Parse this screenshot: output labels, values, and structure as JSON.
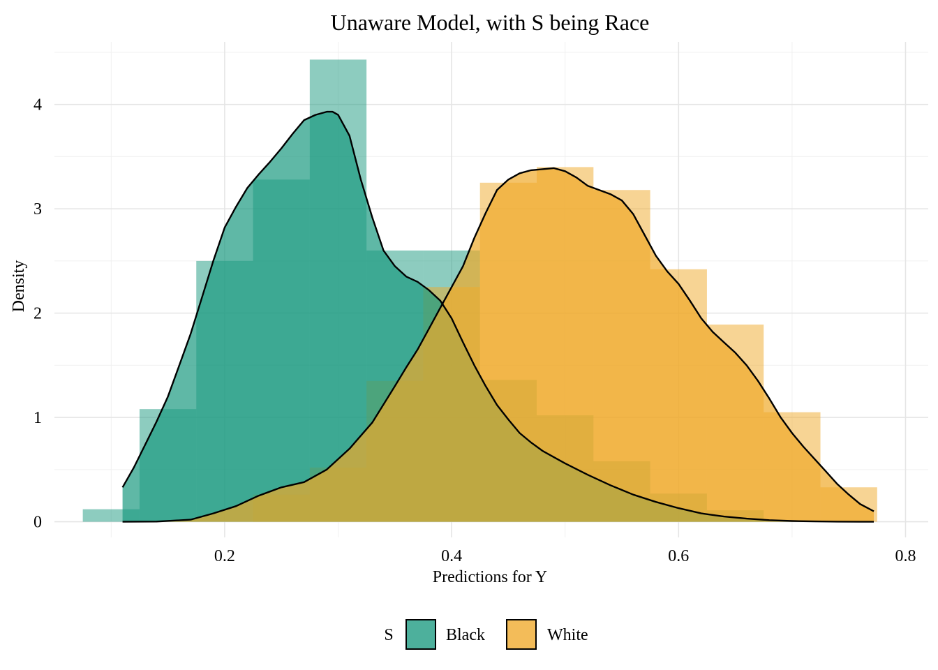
{
  "chart_data": {
    "type": "histogram+density",
    "title": "Unaware Model, with S being Race",
    "xlabel": "Predictions for Y",
    "ylabel": "Density",
    "xlim": [
      0.05,
      0.82
    ],
    "ylim": [
      -0.15,
      4.6
    ],
    "x_ticks": [
      0.2,
      0.4,
      0.6,
      0.8
    ],
    "x_tick_labels": [
      "0.2",
      "0.4",
      "0.6",
      "0.8"
    ],
    "y_ticks": [
      0,
      1,
      2,
      3,
      4
    ],
    "y_tick_labels": [
      "0",
      "1",
      "2",
      "3",
      "4"
    ],
    "grid": true,
    "legend": {
      "title": "S",
      "position": "bottom"
    },
    "bin_edges": [
      0.075,
      0.125,
      0.175,
      0.225,
      0.275,
      0.325,
      0.375,
      0.425,
      0.475,
      0.525,
      0.575,
      0.625,
      0.675,
      0.725,
      0.775
    ],
    "series": [
      {
        "name": "Black",
        "color": "#1b9a80",
        "hist_values": [
          0.12,
          1.08,
          2.5,
          3.28,
          4.43,
          2.6,
          2.6,
          1.36,
          1.02,
          0.58,
          0.27,
          0.11,
          0,
          0
        ],
        "density_x": [
          0.11,
          0.12,
          0.13,
          0.14,
          0.15,
          0.16,
          0.17,
          0.18,
          0.19,
          0.2,
          0.21,
          0.22,
          0.23,
          0.24,
          0.25,
          0.26,
          0.27,
          0.28,
          0.29,
          0.295,
          0.3,
          0.31,
          0.32,
          0.33,
          0.34,
          0.35,
          0.36,
          0.37,
          0.38,
          0.39,
          0.4,
          0.41,
          0.42,
          0.43,
          0.44,
          0.45,
          0.46,
          0.47,
          0.48,
          0.49,
          0.5,
          0.52,
          0.54,
          0.56,
          0.58,
          0.6,
          0.62,
          0.64,
          0.66,
          0.68,
          0.7,
          0.72,
          0.74,
          0.76,
          0.772
        ],
        "density_y": [
          0.33,
          0.52,
          0.74,
          0.96,
          1.2,
          1.5,
          1.8,
          2.15,
          2.5,
          2.82,
          3.02,
          3.2,
          3.33,
          3.45,
          3.58,
          3.72,
          3.85,
          3.9,
          3.93,
          3.93,
          3.9,
          3.7,
          3.28,
          2.92,
          2.6,
          2.45,
          2.35,
          2.3,
          2.22,
          2.12,
          1.95,
          1.72,
          1.5,
          1.3,
          1.12,
          0.98,
          0.85,
          0.76,
          0.68,
          0.62,
          0.56,
          0.45,
          0.35,
          0.26,
          0.19,
          0.13,
          0.08,
          0.05,
          0.03,
          0.015,
          0.007,
          0.003,
          0.001,
          0,
          0
        ]
      },
      {
        "name": "White",
        "color": "#f0a92a",
        "hist_values": [
          0,
          0,
          0,
          0.26,
          0.52,
          1.35,
          2.25,
          3.25,
          3.4,
          3.18,
          2.42,
          1.89,
          1.05,
          0.33
        ],
        "density_x": [
          0.11,
          0.14,
          0.17,
          0.19,
          0.21,
          0.23,
          0.25,
          0.27,
          0.29,
          0.31,
          0.33,
          0.35,
          0.36,
          0.37,
          0.38,
          0.39,
          0.4,
          0.41,
          0.42,
          0.43,
          0.44,
          0.45,
          0.46,
          0.47,
          0.48,
          0.49,
          0.5,
          0.51,
          0.52,
          0.53,
          0.54,
          0.55,
          0.56,
          0.57,
          0.58,
          0.59,
          0.6,
          0.61,
          0.62,
          0.63,
          0.64,
          0.65,
          0.66,
          0.67,
          0.68,
          0.69,
          0.7,
          0.71,
          0.72,
          0.73,
          0.74,
          0.75,
          0.76,
          0.772
        ],
        "density_y": [
          0,
          0.002,
          0.02,
          0.08,
          0.15,
          0.25,
          0.33,
          0.38,
          0.5,
          0.7,
          0.95,
          1.3,
          1.48,
          1.65,
          1.85,
          2.05,
          2.25,
          2.45,
          2.72,
          2.96,
          3.18,
          3.28,
          3.34,
          3.37,
          3.38,
          3.39,
          3.36,
          3.3,
          3.22,
          3.18,
          3.14,
          3.08,
          2.95,
          2.75,
          2.55,
          2.4,
          2.28,
          2.12,
          1.95,
          1.82,
          1.72,
          1.62,
          1.5,
          1.35,
          1.18,
          1.0,
          0.85,
          0.72,
          0.6,
          0.48,
          0.36,
          0.26,
          0.17,
          0.1
        ]
      }
    ]
  }
}
